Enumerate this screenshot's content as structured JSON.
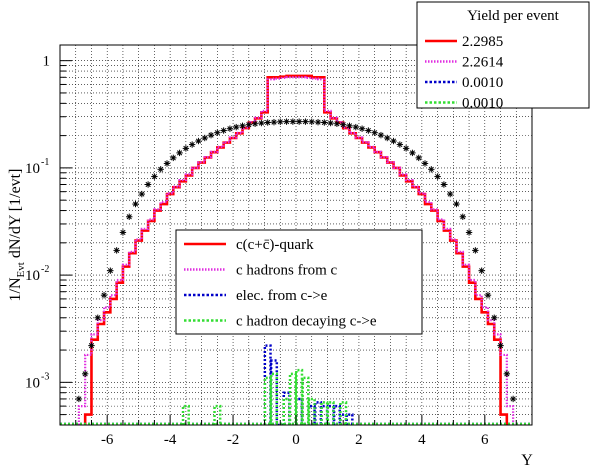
{
  "chart_data": {
    "type": "histogram",
    "xlabel": "Y",
    "ylabel": "1/N_Evt dN/dY [1/evt]",
    "xlim": [
      -7.5,
      7.5
    ],
    "ylim": [
      0.0004,
      1.4
    ],
    "yscale": "log",
    "grid": true,
    "x_ticks": [
      -6,
      -4,
      -2,
      0,
      2,
      4,
      6
    ],
    "y_ticks": [
      {
        "value": 0.001,
        "base": "10",
        "exp": "-3"
      },
      {
        "value": 0.01,
        "base": "10",
        "exp": "-2"
      },
      {
        "value": 0.1,
        "base": "10",
        "exp": "-1"
      },
      {
        "value": 1,
        "base": "1",
        "exp": ""
      }
    ],
    "yield_legend": {
      "title": "Yield per event",
      "entries": [
        {
          "value": "2.2985",
          "color": "#ff0000",
          "style": "solid"
        },
        {
          "value": "2.2614",
          "color": "#e02ee0",
          "style": "dotted"
        },
        {
          "value": "0.0010",
          "color": "#0000c8",
          "style": "dotted"
        },
        {
          "value": "0.0010",
          "color": "#33dd33",
          "style": "dotted"
        }
      ]
    },
    "legend": [
      {
        "label": "c(c+c̄)-quark",
        "color": "#ff0000",
        "style": "solid"
      },
      {
        "label": "c hadrons from c",
        "color": "#e02ee0",
        "style": "dotted"
      },
      {
        "label": "elec. from c->e",
        "color": "#0000c8",
        "style": "dotted"
      },
      {
        "label": "c hadron decaying c->e",
        "color": "#33dd33",
        "style": "dotted"
      }
    ],
    "series": [
      {
        "name": "c(c+c̄)-quark",
        "kind": "step",
        "color": "#ff0000",
        "points": [
          [
            -6.6,
            0.0005
          ],
          [
            -6.4,
            0.0025
          ],
          [
            -6.2,
            0.0035
          ],
          [
            -6.0,
            0.0045
          ],
          [
            -5.8,
            0.006
          ],
          [
            -5.6,
            0.0085
          ],
          [
            -5.4,
            0.012
          ],
          [
            -5.2,
            0.016
          ],
          [
            -5.0,
            0.021
          ],
          [
            -4.8,
            0.026
          ],
          [
            -4.6,
            0.032
          ],
          [
            -4.4,
            0.04
          ],
          [
            -4.2,
            0.046
          ],
          [
            -4.0,
            0.057
          ],
          [
            -3.8,
            0.066
          ],
          [
            -3.6,
            0.075
          ],
          [
            -3.4,
            0.085
          ],
          [
            -3.2,
            0.1
          ],
          [
            -3.0,
            0.112
          ],
          [
            -2.8,
            0.125
          ],
          [
            -2.6,
            0.14
          ],
          [
            -2.4,
            0.155
          ],
          [
            -2.2,
            0.172
          ],
          [
            -2.0,
            0.19
          ],
          [
            -1.8,
            0.21
          ],
          [
            -1.6,
            0.235
          ],
          [
            -1.4,
            0.265
          ],
          [
            -1.2,
            0.29
          ],
          [
            -1.0,
            0.33
          ],
          [
            -0.8,
            0.7
          ],
          [
            -0.6,
            0.7
          ],
          [
            -0.4,
            0.71
          ],
          [
            -0.2,
            0.72
          ],
          [
            0.0,
            0.72
          ],
          [
            0.2,
            0.72
          ],
          [
            0.4,
            0.72
          ],
          [
            0.6,
            0.7
          ],
          [
            0.8,
            0.7
          ],
          [
            1.0,
            0.33
          ],
          [
            1.2,
            0.29
          ],
          [
            1.4,
            0.265
          ],
          [
            1.6,
            0.235
          ],
          [
            1.8,
            0.21
          ],
          [
            2.0,
            0.19
          ],
          [
            2.2,
            0.172
          ],
          [
            2.4,
            0.155
          ],
          [
            2.6,
            0.14
          ],
          [
            2.8,
            0.125
          ],
          [
            3.0,
            0.112
          ],
          [
            3.2,
            0.1
          ],
          [
            3.4,
            0.085
          ],
          [
            3.6,
            0.075
          ],
          [
            3.8,
            0.066
          ],
          [
            4.0,
            0.057
          ],
          [
            4.2,
            0.046
          ],
          [
            4.4,
            0.04
          ],
          [
            4.6,
            0.032
          ],
          [
            4.8,
            0.026
          ],
          [
            5.0,
            0.021
          ],
          [
            5.2,
            0.016
          ],
          [
            5.4,
            0.012
          ],
          [
            5.6,
            0.0085
          ],
          [
            5.8,
            0.006
          ],
          [
            6.0,
            0.0045
          ],
          [
            6.2,
            0.0035
          ],
          [
            6.4,
            0.0025
          ],
          [
            6.6,
            0.0005
          ]
        ]
      },
      {
        "name": "c hadrons from c",
        "kind": "step",
        "color": "#e02ee0",
        "points": [
          [
            -6.8,
            0.0006
          ],
          [
            -6.6,
            0.0018
          ],
          [
            -6.4,
            0.0028
          ],
          [
            -6.2,
            0.0038
          ],
          [
            -6.0,
            0.005
          ],
          [
            -5.8,
            0.0065
          ],
          [
            -5.6,
            0.009
          ],
          [
            -5.4,
            0.0125
          ],
          [
            -5.2,
            0.0165
          ],
          [
            -5.0,
            0.0215
          ],
          [
            -4.8,
            0.027
          ],
          [
            -4.6,
            0.033
          ],
          [
            -4.4,
            0.041
          ],
          [
            -4.2,
            0.048
          ],
          [
            -4.0,
            0.058
          ],
          [
            -3.8,
            0.067
          ],
          [
            -3.6,
            0.077
          ],
          [
            -3.4,
            0.087
          ],
          [
            -3.2,
            0.1
          ],
          [
            -3.0,
            0.113
          ],
          [
            -2.8,
            0.126
          ],
          [
            -2.6,
            0.141
          ],
          [
            -2.4,
            0.157
          ],
          [
            -2.2,
            0.174
          ],
          [
            -2.0,
            0.192
          ],
          [
            -1.8,
            0.212
          ],
          [
            -1.6,
            0.237
          ],
          [
            -1.4,
            0.267
          ],
          [
            -1.2,
            0.293
          ],
          [
            -1.0,
            0.34
          ],
          [
            -0.8,
            0.67
          ],
          [
            -0.6,
            0.68
          ],
          [
            -0.4,
            0.69
          ],
          [
            -0.2,
            0.7
          ],
          [
            0.0,
            0.7
          ],
          [
            0.2,
            0.7
          ],
          [
            0.4,
            0.69
          ],
          [
            0.6,
            0.68
          ],
          [
            0.8,
            0.67
          ],
          [
            1.0,
            0.34
          ],
          [
            1.2,
            0.293
          ],
          [
            1.4,
            0.267
          ],
          [
            1.6,
            0.237
          ],
          [
            1.8,
            0.212
          ],
          [
            2.0,
            0.192
          ],
          [
            2.2,
            0.174
          ],
          [
            2.4,
            0.157
          ],
          [
            2.6,
            0.141
          ],
          [
            2.8,
            0.126
          ],
          [
            3.0,
            0.113
          ],
          [
            3.2,
            0.1
          ],
          [
            3.4,
            0.087
          ],
          [
            3.6,
            0.077
          ],
          [
            3.8,
            0.067
          ],
          [
            4.0,
            0.058
          ],
          [
            4.2,
            0.048
          ],
          [
            4.4,
            0.041
          ],
          [
            4.6,
            0.033
          ],
          [
            4.8,
            0.027
          ],
          [
            5.0,
            0.0215
          ],
          [
            5.2,
            0.0165
          ],
          [
            5.4,
            0.0125
          ],
          [
            5.6,
            0.009
          ],
          [
            5.8,
            0.0065
          ],
          [
            6.0,
            0.005
          ],
          [
            6.2,
            0.0038
          ],
          [
            6.4,
            0.0028
          ],
          [
            6.6,
            0.0018
          ],
          [
            6.8,
            0.0006
          ]
        ]
      },
      {
        "name": "elec. from c->e",
        "kind": "bars",
        "color": "#0000c8",
        "points": [
          [
            -0.9,
            0.0022
          ],
          [
            -0.7,
            0.0016
          ],
          [
            -0.5,
            0.0004
          ],
          [
            -0.3,
            0.0008
          ],
          [
            0.1,
            0.0007
          ],
          [
            0.5,
            0.0006
          ],
          [
            0.7,
            0.00065
          ],
          [
            0.9,
            0.0006
          ],
          [
            1.1,
            0.0006
          ],
          [
            1.3,
            0.0006
          ],
          [
            1.5,
            0.0005
          ],
          [
            1.7,
            0.0005
          ]
        ]
      },
      {
        "name": "c hadron decaying c->e",
        "kind": "bars",
        "color": "#33dd33",
        "points": [
          [
            -3.5,
            0.0006
          ],
          [
            -2.5,
            0.0006
          ],
          [
            -0.9,
            0.0011
          ],
          [
            -0.7,
            0.0012
          ],
          [
            -0.3,
            0.0007
          ],
          [
            -0.1,
            0.0012
          ],
          [
            0.1,
            0.0013
          ],
          [
            0.3,
            0.0011
          ],
          [
            0.5,
            0.0007
          ],
          [
            0.9,
            0.00065
          ],
          [
            1.1,
            0.00065
          ],
          [
            1.5,
            0.00065
          ]
        ]
      },
      {
        "name": "",
        "kind": "markers",
        "color": "#000000",
        "points": [
          [
            -6.9,
            0.0007
          ],
          [
            -6.7,
            0.0012
          ],
          [
            -6.5,
            0.0022
          ],
          [
            -6.3,
            0.004
          ],
          [
            -6.1,
            0.0065
          ],
          [
            -5.9,
            0.011
          ],
          [
            -5.7,
            0.017
          ],
          [
            -5.5,
            0.025
          ],
          [
            -5.3,
            0.035
          ],
          [
            -5.1,
            0.046
          ],
          [
            -4.9,
            0.057
          ],
          [
            -4.7,
            0.07
          ],
          [
            -4.5,
            0.083
          ],
          [
            -4.3,
            0.097
          ],
          [
            -4.1,
            0.11
          ],
          [
            -3.9,
            0.124
          ],
          [
            -3.7,
            0.138
          ],
          [
            -3.5,
            0.152
          ],
          [
            -3.3,
            0.165
          ],
          [
            -3.1,
            0.178
          ],
          [
            -2.9,
            0.19
          ],
          [
            -2.7,
            0.202
          ],
          [
            -2.5,
            0.213
          ],
          [
            -2.3,
            0.223
          ],
          [
            -2.1,
            0.232
          ],
          [
            -1.9,
            0.24
          ],
          [
            -1.7,
            0.247
          ],
          [
            -1.5,
            0.253
          ],
          [
            -1.3,
            0.258
          ],
          [
            -1.1,
            0.262
          ],
          [
            -0.9,
            0.265
          ],
          [
            -0.7,
            0.267
          ],
          [
            -0.5,
            0.269
          ],
          [
            -0.3,
            0.27
          ],
          [
            -0.1,
            0.27
          ],
          [
            0.1,
            0.27
          ],
          [
            0.3,
            0.27
          ],
          [
            0.5,
            0.269
          ],
          [
            0.7,
            0.267
          ],
          [
            0.9,
            0.265
          ],
          [
            1.1,
            0.262
          ],
          [
            1.3,
            0.258
          ],
          [
            1.5,
            0.253
          ],
          [
            1.7,
            0.247
          ],
          [
            1.9,
            0.24
          ],
          [
            2.1,
            0.232
          ],
          [
            2.3,
            0.223
          ],
          [
            2.5,
            0.213
          ],
          [
            2.7,
            0.202
          ],
          [
            2.9,
            0.19
          ],
          [
            3.1,
            0.178
          ],
          [
            3.3,
            0.165
          ],
          [
            3.5,
            0.152
          ],
          [
            3.7,
            0.138
          ],
          [
            3.9,
            0.124
          ],
          [
            4.1,
            0.11
          ],
          [
            4.3,
            0.097
          ],
          [
            4.5,
            0.083
          ],
          [
            4.7,
            0.07
          ],
          [
            4.9,
            0.057
          ],
          [
            5.1,
            0.046
          ],
          [
            5.3,
            0.035
          ],
          [
            5.5,
            0.025
          ],
          [
            5.7,
            0.017
          ],
          [
            5.9,
            0.011
          ],
          [
            6.1,
            0.0065
          ],
          [
            6.3,
            0.004
          ],
          [
            6.5,
            0.0022
          ],
          [
            6.7,
            0.0012
          ],
          [
            6.9,
            0.0007
          ]
        ]
      }
    ]
  }
}
